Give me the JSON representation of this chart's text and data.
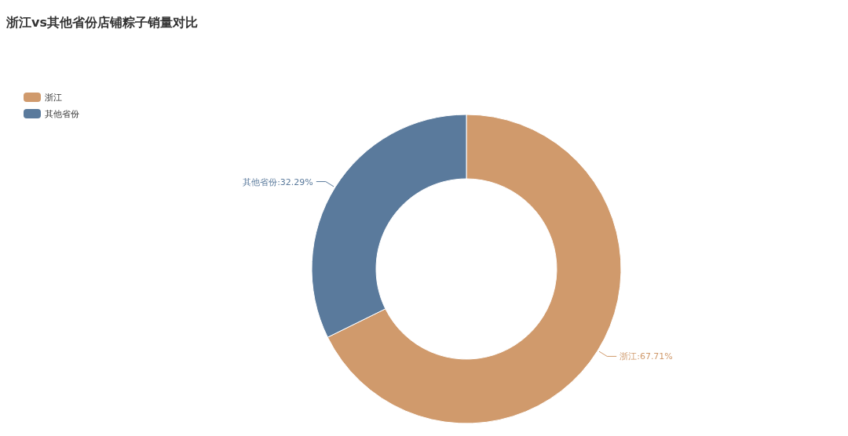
{
  "chart_data": {
    "type": "donut",
    "title": "浙江vs其他省份店铺粽子销量对比",
    "categories": [
      "浙江",
      "其他省份"
    ],
    "values": [
      67.71,
      32.29
    ],
    "colors": [
      "#d09a6c",
      "#5a7a9c"
    ],
    "value_labels": [
      "浙江:67.71%",
      "其他省份:32.29%"
    ],
    "legend": "top left"
  }
}
